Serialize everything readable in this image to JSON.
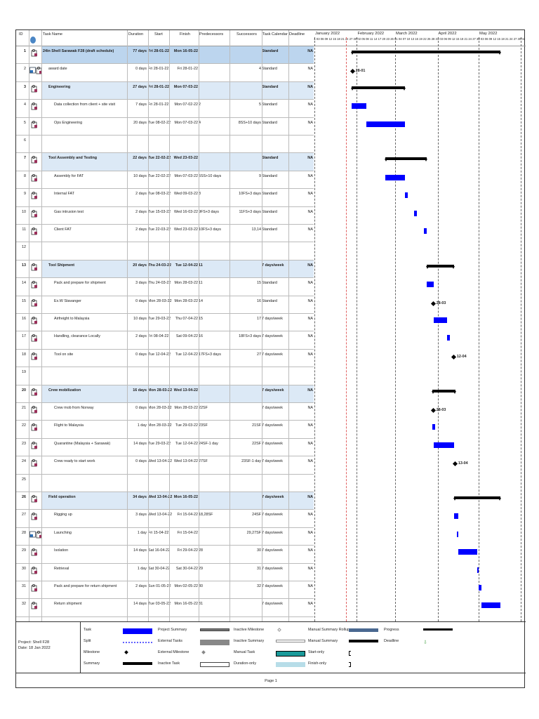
{
  "columns": {
    "id": "ID",
    "name": "Task Name",
    "duration": "Duration",
    "start": "Start",
    "finish": "Finish",
    "predecessors": "Predecessors",
    "successors": "Successors",
    "calendar": "Task Calendar",
    "deadline": "Deadline"
  },
  "colors": {
    "task": "#0000ff",
    "summary": "#000000",
    "summary_row": "#dce9f6",
    "project_row": "#bcd5ee",
    "status_line": "#e06060"
  },
  "chart_data": {
    "type": "gantt",
    "months": [
      "January 2022",
      "February 2022",
      "March 2022",
      "April 2022",
      "May 2022"
    ],
    "x_range": [
      "2022-01-01",
      "2022-06-03"
    ],
    "tasks": [
      {
        "id": "1",
        "name": "24in  Shell Sarawak F28 (draft schedule)",
        "duration": "77 days",
        "start": "Fri 28-01-22",
        "finish": "Mon 16-05-22",
        "pred": "",
        "succ": "",
        "cal": "Standard",
        "deadline": "NA",
        "kind": "summary",
        "level": 0,
        "icon": "calendar-person"
      },
      {
        "id": "2",
        "name": "award date",
        "duration": "0 days",
        "start": "Fri 28-01-22",
        "finish": "Fri 28-01-22",
        "pred": "",
        "succ": "4",
        "cal": "Standard",
        "deadline": "NA",
        "kind": "milestone",
        "level": 1,
        "label": "28-01",
        "icon": "constraint"
      },
      {
        "id": "3",
        "name": "Engineering",
        "duration": "27 days",
        "start": "Fri 28-01-22",
        "finish": "Mon 07-03-22",
        "pred": "",
        "succ": "",
        "cal": "Standard",
        "deadline": "NA",
        "kind": "summary",
        "level": 1,
        "icon": "calendar-person"
      },
      {
        "id": "4",
        "name": "Data collection from client + site visit",
        "duration": "7 days",
        "start": "Fri 28-01-22",
        "finish": "Mon 07-02-22",
        "pred": "2",
        "succ": "5",
        "cal": "Standard",
        "deadline": "NA",
        "kind": "task",
        "level": 2,
        "icon": "calendar-person"
      },
      {
        "id": "5",
        "name": "Ops Engineering",
        "duration": "20 days",
        "start": "Tue 08-02-22",
        "finish": "Mon 07-03-22",
        "pred": "4",
        "succ": "8SS+10 days",
        "cal": "Standard",
        "deadline": "NA",
        "kind": "task",
        "level": 2,
        "icon": "calendar-person"
      },
      {
        "id": "6",
        "kind": "blank"
      },
      {
        "id": "7",
        "name": "Tool Assembly and Testing",
        "duration": "22 days",
        "start": "Tue 22-02-22",
        "finish": "Wed 23-03-22",
        "pred": "",
        "succ": "",
        "cal": "Standard",
        "deadline": "NA",
        "kind": "summary",
        "level": 1,
        "icon": "calendar-person"
      },
      {
        "id": "8",
        "name": "Assembly for FAT",
        "duration": "10 days",
        "start": "Tue 22-02-22",
        "finish": "Mon 07-03-22",
        "pred": "5SS+10 days",
        "succ": "9",
        "cal": "Standard",
        "deadline": "NA",
        "kind": "task",
        "level": 2,
        "icon": "calendar-person"
      },
      {
        "id": "9",
        "name": "Internal FAT",
        "duration": "2 days",
        "start": "Tue 08-03-22",
        "finish": "Wed 09-03-22",
        "pred": "8",
        "succ": "10FS+3 days",
        "cal": "Standard",
        "deadline": "NA",
        "kind": "task",
        "level": 2,
        "icon": "calendar-person"
      },
      {
        "id": "10",
        "name": "Gas intrusion test",
        "duration": "2 days",
        "start": "Tue 15-03-22",
        "finish": "Wed 16-03-22",
        "pred": "9FS+3 days",
        "succ": "11FS+3 days",
        "cal": "Standard",
        "deadline": "NA",
        "kind": "task",
        "level": 2,
        "icon": "calendar-person"
      },
      {
        "id": "11",
        "name": "Client FAT",
        "duration": "2 days",
        "start": "Tue 22-03-22",
        "finish": "Wed 23-03-22",
        "pred": "10FS+3 days",
        "succ": "13,14",
        "cal": "Standard",
        "deadline": "NA",
        "kind": "task",
        "level": 2,
        "icon": "calendar-person"
      },
      {
        "id": "12",
        "kind": "blank"
      },
      {
        "id": "13",
        "name": "Tool Shipment",
        "duration": "20 days",
        "start": "Thu 24-03-22",
        "finish": "Tue 12-04-22",
        "pred": "11",
        "succ": "",
        "cal": "7 days/week",
        "deadline": "NA",
        "kind": "summary",
        "level": 1,
        "icon": "calendar-person"
      },
      {
        "id": "14",
        "name": "Pack and prepare for shipment",
        "duration": "3 days",
        "start": "Thu 24-03-22",
        "finish": "Mon 28-03-22",
        "pred": "11",
        "succ": "15",
        "cal": "Standard",
        "deadline": "NA",
        "kind": "task",
        "level": 2,
        "icon": "calendar-person"
      },
      {
        "id": "15",
        "name": "Ex.W Stavanger",
        "duration": "0 days",
        "start": "Mon 28-03-22",
        "finish": "Mon 28-03-22",
        "pred": "14",
        "succ": "16",
        "cal": "Standard",
        "deadline": "NA",
        "kind": "milestone",
        "level": 2,
        "label": "28-03",
        "icon": "calendar-person"
      },
      {
        "id": "16",
        "name": "Airfreight to Malaysia",
        "duration": "10 days",
        "start": "Tue 29-03-22",
        "finish": "Thu 07-04-22",
        "pred": "15",
        "succ": "17",
        "cal": "7 days/week",
        "deadline": "NA",
        "kind": "task",
        "level": 2,
        "icon": "calendar-person"
      },
      {
        "id": "17",
        "name": "Handling, clearance Locally",
        "duration": "2 days",
        "start": "Fri 08-04-22",
        "finish": "Sat 09-04-22",
        "pred": "16",
        "succ": "18FS+3 days",
        "cal": "7 days/week",
        "deadline": "NA",
        "kind": "task",
        "level": 2,
        "icon": "calendar-person"
      },
      {
        "id": "18",
        "name": "Tool on site",
        "duration": "0 days",
        "start": "Tue 12-04-22",
        "finish": "Tue 12-04-22",
        "pred": "17FS+3 days",
        "succ": "27",
        "cal": "7 days/week",
        "deadline": "NA",
        "kind": "milestone",
        "level": 2,
        "label": "12-04",
        "icon": "calendar-person"
      },
      {
        "id": "19",
        "kind": "blank"
      },
      {
        "id": "20",
        "name": "Crew mobilization",
        "duration": "16 days",
        "start": "Mon 28-03-22",
        "finish": "Wed 13-04-22",
        "pred": "",
        "succ": "",
        "cal": "7 days/week",
        "deadline": "NA",
        "kind": "summary",
        "level": 1,
        "icon": "calendar-person"
      },
      {
        "id": "21",
        "name": "Crew mob from Norway",
        "duration": "0 days",
        "start": "Mon 28-03-22",
        "finish": "Mon 28-03-22",
        "pred": "22SF",
        "succ": "",
        "cal": "7 days/week",
        "deadline": "NA",
        "kind": "milestone",
        "level": 2,
        "label": "28-03",
        "icon": "calendar-person"
      },
      {
        "id": "22",
        "name": "Flight to Malaysia",
        "duration": "1 day",
        "start": "Mon 28-03-22",
        "finish": "Tue 29-03-22",
        "pred": "23SF",
        "succ": "21SF",
        "cal": "7 days/week",
        "deadline": "NA",
        "kind": "task",
        "level": 2,
        "icon": "calendar-person"
      },
      {
        "id": "23",
        "name": "Quarantine (Malaysia + Sarawak)",
        "duration": "14 days",
        "start": "Tue 29-03-22",
        "finish": "Tue 12-04-22",
        "pred": "24SF-1 day",
        "succ": "22SF",
        "cal": "7 days/week",
        "deadline": "NA",
        "kind": "task",
        "level": 2,
        "icon": "calendar-person"
      },
      {
        "id": "24",
        "name": "Crew ready to start work",
        "duration": "0 days",
        "start": "Wed 13-04-22",
        "finish": "Wed 13-04-22",
        "pred": "27SF",
        "succ": "23SF-1 day",
        "cal": "7 days/week",
        "deadline": "NA",
        "kind": "milestone",
        "level": 2,
        "label": "13-04",
        "icon": "calendar-person"
      },
      {
        "id": "25",
        "kind": "blank"
      },
      {
        "id": "26",
        "name": "Field operation",
        "duration": "34 days",
        "start": "Wed 13-04-22",
        "finish": "Mon 16-05-22",
        "pred": "",
        "succ": "",
        "cal": "7 days/week",
        "deadline": "NA",
        "kind": "summary",
        "level": 1,
        "icon": "calendar-person"
      },
      {
        "id": "27",
        "name": "Rigging up",
        "duration": "3 days",
        "start": "Wed 13-04-22",
        "finish": "Fri 15-04-22",
        "pred": "18,28SF",
        "succ": "24SF",
        "cal": "7 days/week",
        "deadline": "NA",
        "kind": "task",
        "level": 2,
        "icon": "calendar-person"
      },
      {
        "id": "28",
        "name": "Launching",
        "duration": "1 day",
        "start": "Fri 15-04-22",
        "finish": "Fri 15-04-22",
        "pred": "",
        "succ": "29,27SF",
        "cal": "7 days/week",
        "deadline": "NA",
        "kind": "task",
        "level": 2,
        "icon": "constraint"
      },
      {
        "id": "29",
        "name": "Isolation",
        "duration": "14 days",
        "start": "Sat 16-04-22",
        "finish": "Fri 29-04-22",
        "pred": "28",
        "succ": "30",
        "cal": "7 days/week",
        "deadline": "NA",
        "kind": "task",
        "level": 2,
        "icon": "calendar-person"
      },
      {
        "id": "30",
        "name": "Retrieval",
        "duration": "1 day",
        "start": "Sat 30-04-22",
        "finish": "Sat 30-04-22",
        "pred": "29",
        "succ": "31",
        "cal": "7 days/week",
        "deadline": "NA",
        "kind": "task",
        "level": 2,
        "icon": "calendar-person"
      },
      {
        "id": "31",
        "name": "Pack and prepare for return shipment",
        "duration": "2 days",
        "start": "Sun 01-05-22",
        "finish": "Mon 02-05-22",
        "pred": "30",
        "succ": "32",
        "cal": "7 days/week",
        "deadline": "NA",
        "kind": "task",
        "level": 2,
        "icon": "calendar-person"
      },
      {
        "id": "32",
        "name": "Return shipment",
        "duration": "14 days",
        "start": "Tue 03-05-22",
        "finish": "Mon 16-05-22",
        "pred": "31",
        "succ": "",
        "cal": "7 days/week",
        "deadline": "NA",
        "kind": "task",
        "level": 2,
        "icon": "calendar-person"
      }
    ]
  },
  "footer": {
    "project": "Project: Shell F28",
    "date": "Date: 18 Jan 2022",
    "page": "Page 1"
  },
  "legend": [
    {
      "label": "Task",
      "style": "task"
    },
    {
      "label": "Split",
      "style": "split"
    },
    {
      "label": "Milestone",
      "style": "milestone"
    },
    {
      "label": "Summary",
      "style": "summary"
    },
    {
      "label": "Project Summary",
      "style": "project-summary"
    },
    {
      "label": "External Tasks",
      "style": "external-tasks"
    },
    {
      "label": "External Milestone",
      "style": "external-milestone"
    },
    {
      "label": "Inactive Task",
      "style": "inactive-task"
    },
    {
      "label": "Inactive Milestone",
      "style": "inactive-milestone"
    },
    {
      "label": "Inactive Summary",
      "style": "inactive-summary"
    },
    {
      "label": "Manual Task",
      "style": "manual-task"
    },
    {
      "label": "Duration-only",
      "style": "duration-only"
    },
    {
      "label": "Manual Summary Rollup",
      "style": "manual-summary-rollup"
    },
    {
      "label": "Manual Summary",
      "style": "manual-summary"
    },
    {
      "label": "Start-only",
      "style": "start-only"
    },
    {
      "label": "Finish-only",
      "style": "finish-only"
    },
    {
      "label": "Progress",
      "style": "progress"
    },
    {
      "label": "Deadline",
      "style": "deadline"
    }
  ]
}
